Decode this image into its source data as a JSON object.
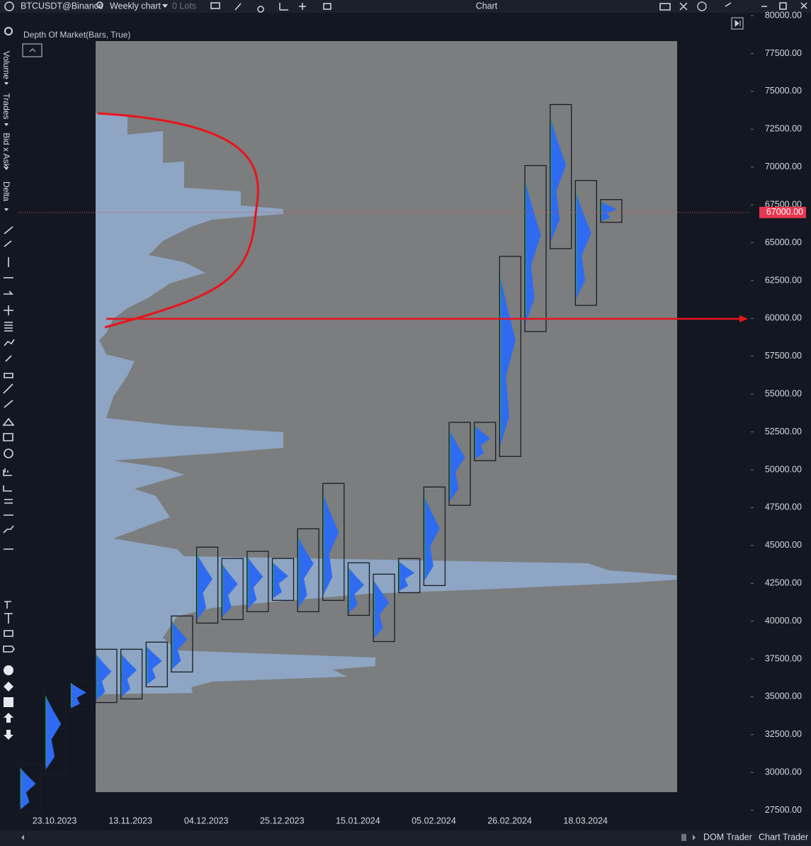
{
  "toolbar": {
    "symbol": "BTCUSDT@Binance",
    "timeframe": "Weekly chart",
    "lots": "0 Lots",
    "window_title": "Chart"
  },
  "side_tabs": [
    "Volume",
    "Trades",
    "Bid x Ask",
    "Delta"
  ],
  "chart": {
    "indicator": "Depth Of Market(Bars, True)",
    "ylim": [
      26500,
      80100
    ],
    "yticks": [
      {
        "value": 27500,
        "label": "27500.00"
      },
      {
        "value": 30000,
        "label": "30000.00"
      },
      {
        "value": 32500,
        "label": "32500.00"
      },
      {
        "value": 35000,
        "label": "35000.00"
      },
      {
        "value": 37500,
        "label": "37500.00"
      },
      {
        "value": 40000,
        "label": "40000.00"
      },
      {
        "value": 42500,
        "label": "42500.00"
      },
      {
        "value": 45000,
        "label": "45000.00"
      },
      {
        "value": 47500,
        "label": "47500.00"
      },
      {
        "value": 50000,
        "label": "50000.00"
      },
      {
        "value": 52500,
        "label": "52500.00"
      },
      {
        "value": 55000,
        "label": "55000.00"
      },
      {
        "value": 57500,
        "label": "57500.00"
      },
      {
        "value": 60000,
        "label": "60000.00"
      },
      {
        "value": 62500,
        "label": "62500.00"
      },
      {
        "value": 65000,
        "label": "65000.00"
      },
      {
        "value": 67500,
        "label": "67500.00"
      },
      {
        "value": 70000,
        "label": "70000.00"
      },
      {
        "value": 72500,
        "label": "72500.00"
      },
      {
        "value": 75000,
        "label": "75000.00"
      },
      {
        "value": 77500,
        "label": "77500.00"
      },
      {
        "value": 80000,
        "label": "80000.00"
      }
    ],
    "current_price": {
      "value": 67000,
      "label": "67000.00"
    },
    "date_labels": [
      "23.10.2023",
      "13.11.2023",
      "04.12.2023",
      "25.12.2023",
      "15.01.2024",
      "05.02.2024",
      "26.02.2024",
      "18.03.2024"
    ],
    "bars": [
      {
        "high": 30600,
        "low": 27400
      },
      {
        "high": 35600,
        "low": 29900
      },
      {
        "high": 36100,
        "low": 34150
      },
      {
        "high": 38140,
        "low": 34620
      },
      {
        "high": 38140,
        "low": 34860
      },
      {
        "high": 38610,
        "low": 35660
      },
      {
        "high": 40340,
        "low": 36640
      },
      {
        "high": 44890,
        "low": 39870
      },
      {
        "high": 44140,
        "low": 40100
      },
      {
        "high": 44610,
        "low": 40620
      },
      {
        "high": 44140,
        "low": 41370
      },
      {
        "high": 46100,
        "low": 40620
      },
      {
        "high": 49100,
        "low": 41370
      },
      {
        "high": 43850,
        "low": 40380
      },
      {
        "high": 43100,
        "low": 38650
      },
      {
        "high": 44140,
        "low": 41880
      },
      {
        "high": 48860,
        "low": 42350
      },
      {
        "high": 53130,
        "low": 47650
      },
      {
        "high": 53130,
        "low": 50600
      },
      {
        "high": 64100,
        "low": 50880
      },
      {
        "high": 70100,
        "low": 59130
      },
      {
        "high": 74130,
        "low": 64610
      },
      {
        "high": 69110,
        "low": 60860
      },
      {
        "high": 67850,
        "low": 66350
      }
    ]
  },
  "bottom_tabs": [
    "DOM Trader",
    "Chart Trader"
  ]
}
